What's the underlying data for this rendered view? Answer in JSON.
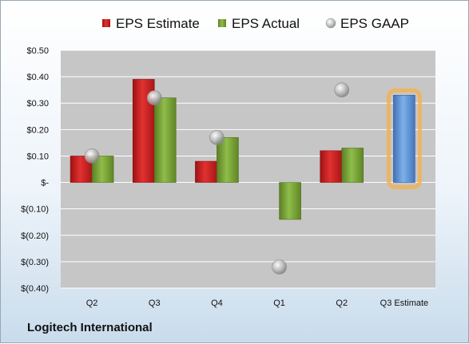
{
  "company_name": "Logitech International",
  "chart_data": {
    "type": "bar",
    "categories": [
      "Q2",
      "Q3",
      "Q4",
      "Q1",
      "Q2",
      "Q3 Estimate"
    ],
    "series": [
      {
        "name": "EPS Estimate",
        "color": "#cc1f1f",
        "values": [
          0.1,
          0.39,
          0.08,
          null,
          0.12,
          null
        ]
      },
      {
        "name": "EPS Actual",
        "color": "#6f9a2e",
        "values": [
          0.1,
          0.32,
          0.17,
          -0.14,
          0.13,
          null
        ]
      },
      {
        "name": "EPS GAAP",
        "color": "#b8b8b8",
        "marker": "circle",
        "values": [
          0.1,
          0.32,
          0.17,
          -0.32,
          0.35,
          null
        ]
      }
    ],
    "estimate_bar": {
      "category": "Q3 Estimate",
      "value": 0.33,
      "color": "#5b8fd1",
      "highlight": "#f5b04a"
    },
    "ylim": [
      -0.4,
      0.5
    ],
    "yticks": [
      0.5,
      0.4,
      0.3,
      0.2,
      0.1,
      0,
      -0.1,
      -0.2,
      -0.3,
      -0.4
    ],
    "ytick_labels": [
      "$0.50",
      "$0.40",
      "$0.30",
      "$0.20",
      "$0.10",
      "$-",
      "$(0.10)",
      "$(0.20)",
      "$(0.30)",
      "$(0.40)"
    ],
    "legend_position": "top",
    "grid": true
  }
}
